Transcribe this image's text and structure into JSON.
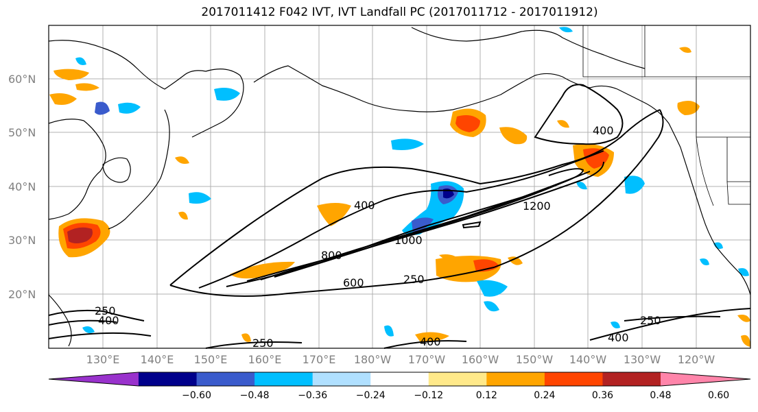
{
  "title": "2017011412 F042 IVT, IVT Landfall PC (2017011712 - 2017011912)",
  "map": {
    "lat_labels": [
      "60°N",
      "50°N",
      "40°N",
      "30°N",
      "20°N"
    ],
    "lon_labels": [
      "130°E",
      "140°E",
      "150°E",
      "160°E",
      "170°E",
      "180°W",
      "170°W",
      "160°W",
      "150°W",
      "140°W",
      "130°W",
      "120°W"
    ],
    "contour_labels": [
      "400",
      "400",
      "1200",
      "1000",
      "800",
      "600",
      "250",
      "250",
      "400",
      "250",
      "400",
      "250",
      "400"
    ]
  },
  "colorbar": {
    "colors": [
      "#9932cc",
      "#00008b",
      "#3a5bcc",
      "#00bfff",
      "#b0e0ff",
      "#ffffff",
      "#ffe98a",
      "#ffa500",
      "#ff4500",
      "#b22222",
      "#ff85aa"
    ],
    "tick_labels": [
      "−0.60",
      "−0.48",
      "−0.36",
      "−0.24",
      "−0.12",
      "0.12",
      "0.24",
      "0.36",
      "0.48",
      "0.60"
    ]
  }
}
